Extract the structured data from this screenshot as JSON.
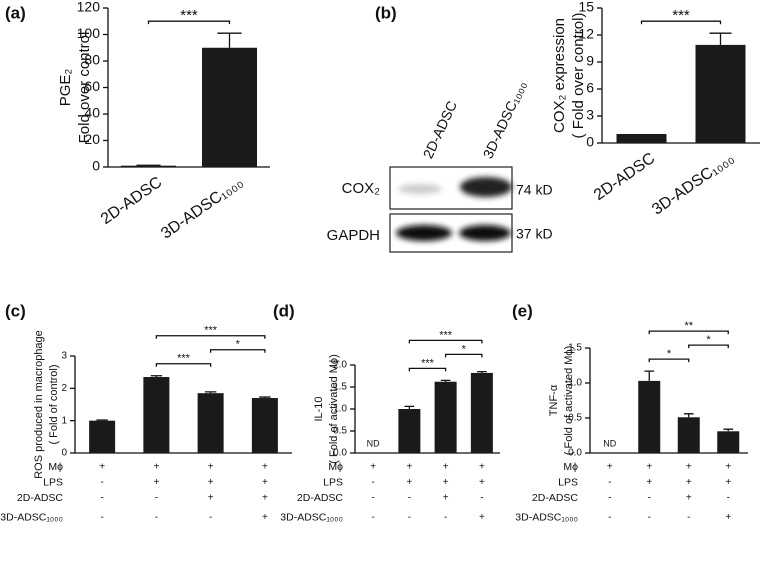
{
  "chart_data": [
    {
      "type": "bar",
      "panel": "(a)",
      "y_label": [
        "PGE₂",
        "Fold over control"
      ],
      "categories": [
        "2D-ADSC",
        "3D-ADSC₁₀₀₀"
      ],
      "values": [
        1,
        90
      ],
      "errors": [
        0.3,
        11
      ],
      "color": "#1a1a1a",
      "ylim": [
        0,
        120
      ],
      "yticks": [
        0,
        20,
        40,
        60,
        80,
        100,
        120
      ],
      "significance": [
        {
          "from": 0,
          "to": 1,
          "label": "***"
        }
      ]
    },
    {
      "type": "bar",
      "y_label": [
        "COX₂ expression",
        "( Fold over control)"
      ],
      "categories": [
        "2D-ADSC",
        "3D-ADSC₁₀₀₀"
      ],
      "values": [
        1,
        10.9
      ],
      "errors": [
        0,
        1.3
      ],
      "color": "#1a1a1a",
      "ylim": [
        0,
        15
      ],
      "yticks": [
        0,
        3,
        6,
        9,
        12,
        15
      ],
      "significance": [
        {
          "from": 0,
          "to": 1,
          "label": "***"
        }
      ]
    },
    {
      "type": "bar",
      "panel": "(c)",
      "y_label": [
        "ROS produced in macrophage",
        "( Fold of  control)"
      ],
      "values": [
        1.0,
        2.35,
        1.85,
        1.7
      ],
      "errors": [
        0.02,
        0.04,
        0.04,
        0.03
      ],
      "color": "#1a1a1a",
      "ylim": [
        0,
        3
      ],
      "yticks": [
        0,
        1,
        2,
        3
      ],
      "significance": [
        {
          "from": 1,
          "to": 3,
          "label": "***"
        },
        {
          "from": 1,
          "to": 2,
          "label": "***"
        },
        {
          "from": 2,
          "to": 3,
          "label": "*"
        }
      ],
      "conditions": [
        {
          "name": "Mϕ",
          "marks": [
            "+",
            "+",
            "+",
            "+"
          ]
        },
        {
          "name": "LPS",
          "marks": [
            "-",
            "+",
            "+",
            "+"
          ]
        },
        {
          "name": "2D-ADSC",
          "marks": [
            "-",
            "-",
            "+",
            "+"
          ]
        },
        {
          "name": "3D-ADSC₁₀₀₀",
          "marks": [
            "-",
            "-",
            "-",
            "+"
          ]
        }
      ]
    },
    {
      "type": "bar",
      "panel": "(d)",
      "y_label": [
        "IL-10",
        "( Fold of activated Mϕ)"
      ],
      "values": [
        null,
        1.0,
        1.62,
        1.82
      ],
      "errors": [
        null,
        0.06,
        0.03,
        0.03
      ],
      "value_labels": [
        "ND",
        null,
        null,
        null
      ],
      "color": "#1a1a1a",
      "ylim": [
        0,
        2
      ],
      "yticks": [
        {
          "value": 0,
          "label": "0.0"
        },
        {
          "value": 0.5,
          "label": "0.5"
        },
        {
          "value": 1,
          "label": "1.0"
        },
        {
          "value": 1.5,
          "label": "1.5"
        },
        {
          "value": 2,
          "label": "2.0"
        }
      ],
      "significance": [
        {
          "from": 1,
          "to": 3,
          "label": "***"
        },
        {
          "from": 1,
          "to": 2,
          "label": "***"
        },
        {
          "from": 2,
          "to": 3,
          "label": "*"
        }
      ],
      "conditions": [
        {
          "name": "Mϕ",
          "marks": [
            "+",
            "+",
            "+",
            "+"
          ]
        },
        {
          "name": "LPS",
          "marks": [
            "-",
            "+",
            "+",
            "+"
          ]
        },
        {
          "name": "2D-ADSC",
          "marks": [
            "-",
            "-",
            "+",
            "-"
          ]
        },
        {
          "name": "3D-ADSC₁₀₀₀",
          "marks": [
            "-",
            "-",
            "-",
            "+"
          ]
        }
      ]
    },
    {
      "type": "bar",
      "panel": "(e)",
      "y_label": [
        "TNF-α",
        "( Fold of activated Mϕ)"
      ],
      "values": [
        null,
        1.03,
        0.51,
        0.31
      ],
      "errors": [
        null,
        0.14,
        0.05,
        0.03
      ],
      "value_labels": [
        "ND",
        null,
        null,
        null
      ],
      "color": "#1a1a1a",
      "ylim": [
        0,
        1.5
      ],
      "yticks": [
        {
          "value": 0,
          "label": "0.0"
        },
        {
          "value": 0.5,
          "label": "0.5"
        },
        {
          "value": 1,
          "label": "1.0"
        },
        {
          "value": 1.5,
          "label": "1.5"
        }
      ],
      "significance": [
        {
          "from": 1,
          "to": 2,
          "label": "*"
        },
        {
          "from": 1,
          "to": 3,
          "label": "**"
        },
        {
          "from": 2,
          "to": 3,
          "label": "*"
        }
      ],
      "conditions": [
        {
          "name": "Mϕ",
          "marks": [
            "+",
            "+",
            "+",
            "+"
          ]
        },
        {
          "name": "LPS",
          "marks": [
            "-",
            "+",
            "+",
            "+"
          ]
        },
        {
          "name": "2D-ADSC",
          "marks": [
            "-",
            "-",
            "+",
            "-"
          ]
        },
        {
          "name": "3D-ADSC₁₀₀₀",
          "marks": [
            "-",
            "-",
            "-",
            "+"
          ]
        }
      ]
    }
  ],
  "blot": {
    "panel": "(b)",
    "lanes": [
      "2D-ADSC",
      "3D-ADSC₁₀₀₀"
    ],
    "rows": [
      {
        "name": "COX₂",
        "size": "74 kD"
      },
      {
        "name": "GAPDH",
        "size": "37 kD"
      }
    ]
  }
}
